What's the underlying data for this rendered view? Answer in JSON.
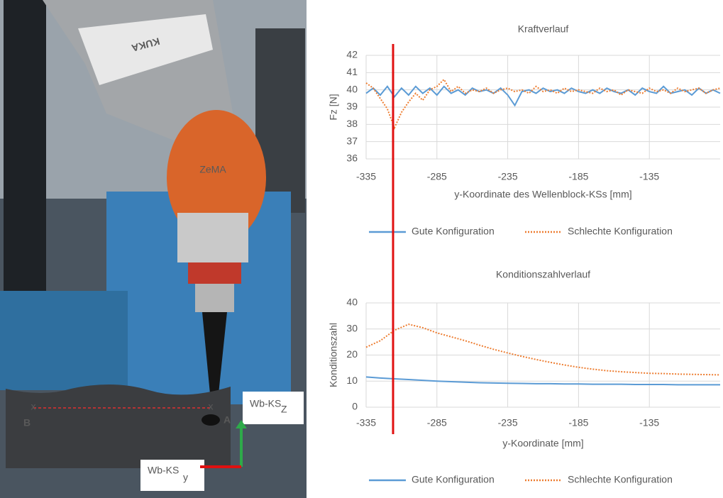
{
  "photo": {
    "arm_brand": "KUKA",
    "head_brand": "ZeMA",
    "marker_left": "x",
    "marker_right": "x",
    "point_a": "A",
    "point_b": "B",
    "frame_z_label": "Wb-KS",
    "frame_z_axis": "Z",
    "frame_y_label": "Wb-KS",
    "frame_y_axis": "y"
  },
  "chart_data": [
    {
      "type": "line",
      "title": "Kraftverlauf",
      "x_label": "y-Koordinate des Wellenblock-KSs [mm]",
      "y_label": "Fz [N]",
      "x": [
        -335,
        -330,
        -325,
        -320,
        -315,
        -310,
        -305,
        -300,
        -295,
        -290,
        -285,
        -280,
        -275,
        -270,
        -265,
        -260,
        -255,
        -250,
        -245,
        -240,
        -235,
        -230,
        -225,
        -220,
        -215,
        -210,
        -205,
        -200,
        -195,
        -190,
        -185,
        -180,
        -175,
        -170,
        -165,
        -160,
        -155,
        -150,
        -145,
        -140,
        -135,
        -130,
        -125,
        -120,
        -115,
        -110,
        -105,
        -100,
        -95,
        -90,
        -85
      ],
      "series": [
        {
          "name": "Gute Konfiguration",
          "color": "#5b9bd5",
          "style": "solid",
          "values": [
            39.8,
            40.1,
            39.7,
            40.2,
            39.6,
            40.1,
            39.7,
            40.2,
            39.8,
            40.1,
            39.7,
            40.2,
            39.8,
            40.0,
            39.7,
            40.1,
            39.9,
            40.0,
            39.8,
            40.1,
            39.7,
            39.1,
            39.9,
            40.0,
            39.8,
            40.1,
            39.9,
            40.0,
            39.8,
            40.1,
            39.9,
            39.8,
            40.0,
            39.8,
            40.1,
            39.9,
            39.8,
            40.0,
            39.7,
            40.1,
            39.9,
            39.8,
            40.2,
            39.8,
            39.9,
            40.0,
            39.7,
            40.1,
            39.8,
            40.0,
            39.8
          ]
        },
        {
          "name": "Schlechte Konfiguration",
          "color": "#ed7d31",
          "style": "dotted",
          "values": [
            40.4,
            40.1,
            39.5,
            38.9,
            37.8,
            38.7,
            39.3,
            39.8,
            39.4,
            40.0,
            40.2,
            40.6,
            39.9,
            40.2,
            39.8,
            40.0,
            39.9,
            40.1,
            39.8,
            40.0,
            40.1,
            39.9,
            40.0,
            39.8,
            40.2,
            39.9,
            40.0,
            39.8,
            40.1,
            39.9,
            40.0,
            39.9,
            39.8,
            40.1,
            39.9,
            40.0,
            39.7,
            40.0,
            39.9,
            39.8,
            40.1,
            39.9,
            40.0,
            39.8,
            40.1,
            39.9,
            40.0,
            40.1,
            39.8,
            40.0,
            40.1
          ]
        }
      ],
      "xlim": [
        -335,
        -85
      ],
      "xticks": [
        -335,
        -285,
        -235,
        -185,
        -135
      ],
      "ylim": [
        36,
        42
      ],
      "yticks": [
        36,
        37,
        38,
        39,
        40,
        41,
        42
      ],
      "grid": true,
      "legend": "bottom"
    },
    {
      "type": "line",
      "title": "Konditionszahlverlauf",
      "x_label": "y-Koordinate [mm]",
      "y_label": "Konditionszahl",
      "x": [
        -335,
        -325,
        -315,
        -305,
        -295,
        -285,
        -275,
        -265,
        -255,
        -245,
        -235,
        -225,
        -215,
        -205,
        -195,
        -185,
        -175,
        -165,
        -155,
        -145,
        -135,
        -125,
        -115,
        -105,
        -95,
        -85
      ],
      "series": [
        {
          "name": "Gute Konfiguration",
          "color": "#5b9bd5",
          "style": "solid",
          "values": [
            11.6,
            11.2,
            10.9,
            10.6,
            10.3,
            10.0,
            9.8,
            9.6,
            9.4,
            9.3,
            9.2,
            9.1,
            9.0,
            9.0,
            8.9,
            8.9,
            8.8,
            8.8,
            8.8,
            8.7,
            8.7,
            8.7,
            8.6,
            8.6,
            8.6,
            8.6
          ]
        },
        {
          "name": "Schlechte Konfiguration",
          "color": "#ed7d31",
          "style": "dotted",
          "values": [
            23,
            25.5,
            29.5,
            31.8,
            30.5,
            28.5,
            27,
            25.5,
            23.8,
            22.2,
            20.8,
            19.5,
            18.3,
            17.2,
            16.2,
            15.3,
            14.6,
            14.0,
            13.6,
            13.3,
            13.0,
            12.9,
            12.7,
            12.6,
            12.5,
            12.4
          ]
        }
      ],
      "xlim": [
        -335,
        -85
      ],
      "xticks": [
        -335,
        -285,
        -235,
        -185,
        -135
      ],
      "ylim": [
        0,
        40
      ],
      "yticks": [
        0,
        10,
        20,
        30,
        40
      ],
      "grid": true,
      "legend": "bottom"
    }
  ]
}
